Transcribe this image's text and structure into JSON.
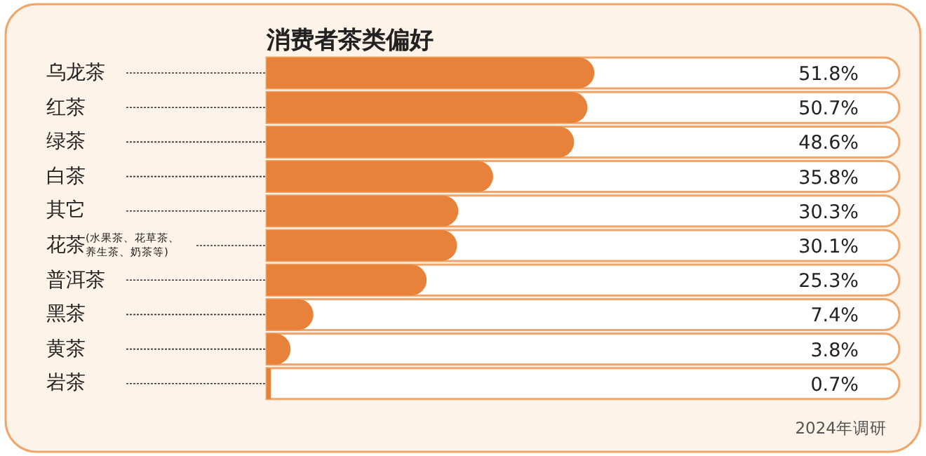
{
  "chart_data": {
    "type": "bar",
    "orientation": "horizontal",
    "title": "消费者茶类偏好",
    "categories": [
      "乌龙茶",
      "红茶",
      "绿茶",
      "白茶",
      "其它",
      "花茶(水果茶、花草茶、养生茶、奶茶等)",
      "普洱茶",
      "黑茶",
      "黄茶",
      "岩茶"
    ],
    "values": [
      51.8,
      50.7,
      48.6,
      35.8,
      30.3,
      30.1,
      25.3,
      7.4,
      3.8,
      0.7
    ],
    "value_labels": [
      "51.8%",
      "50.7%",
      "48.6%",
      "35.8%",
      "30.3%",
      "30.1%",
      "25.3%",
      "7.4%",
      "3.8%",
      "0.7%"
    ],
    "color": "#e8823a",
    "xlim": [
      0,
      100
    ],
    "annotations": [
      "2024年调研"
    ]
  }
}
